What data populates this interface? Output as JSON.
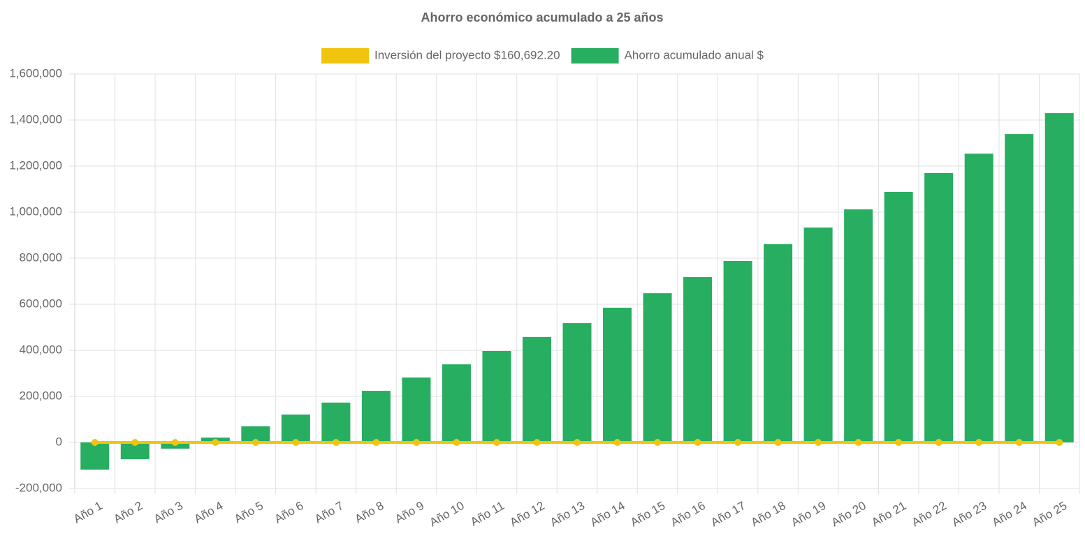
{
  "chart_data": {
    "type": "bar",
    "title": "Ahorro económico acumulado a 25 años",
    "categories": [
      "Año 1",
      "Año 2",
      "Año 3",
      "Año 4",
      "Año 5",
      "Año 6",
      "Año 7",
      "Año 8",
      "Año 9",
      "Año 10",
      "Año 11",
      "Año 12",
      "Año 13",
      "Año 14",
      "Año 15",
      "Año 16",
      "Año 17",
      "Año 18",
      "Año 19",
      "Año 20",
      "Año 21",
      "Año 22",
      "Año 23",
      "Año 24",
      "Año 25"
    ],
    "series": [
      {
        "name": "Inversión del proyecto $160,692.20",
        "type": "line",
        "color": "#f1c40f",
        "values": [
          0,
          0,
          0,
          0,
          0,
          0,
          0,
          0,
          0,
          0,
          0,
          0,
          0,
          0,
          0,
          0,
          0,
          0,
          0,
          0,
          0,
          0,
          0,
          0,
          0
        ]
      },
      {
        "name": "Ahorro acumulado anual $",
        "type": "bar",
        "color": "#27ae60",
        "values": [
          -118000,
          -73000,
          -27000,
          21000,
          70000,
          121000,
          173000,
          224000,
          282000,
          339000,
          397000,
          458000,
          518000,
          585000,
          648000,
          718000,
          788000,
          861000,
          933000,
          1012000,
          1088000,
          1170000,
          1254000,
          1339000,
          1430000
        ]
      }
    ],
    "ylim": [
      -200000,
      1600000
    ],
    "yticks": [
      {
        "value": -200000,
        "label": "-200,000"
      },
      0,
      {
        "value": 200000,
        "label": "200,000"
      },
      {
        "value": 400000,
        "label": "400,000"
      },
      {
        "value": 600000,
        "label": "600,000"
      },
      {
        "value": 800000,
        "label": "800,000"
      },
      {
        "value": 1000000,
        "label": "1,000,000"
      },
      {
        "value": 1200000,
        "label": "1,200,000"
      },
      {
        "value": 1400000,
        "label": "1,400,000"
      },
      {
        "value": 1600000,
        "label": "1,600,000"
      }
    ],
    "grid": true,
    "legend": "top"
  }
}
